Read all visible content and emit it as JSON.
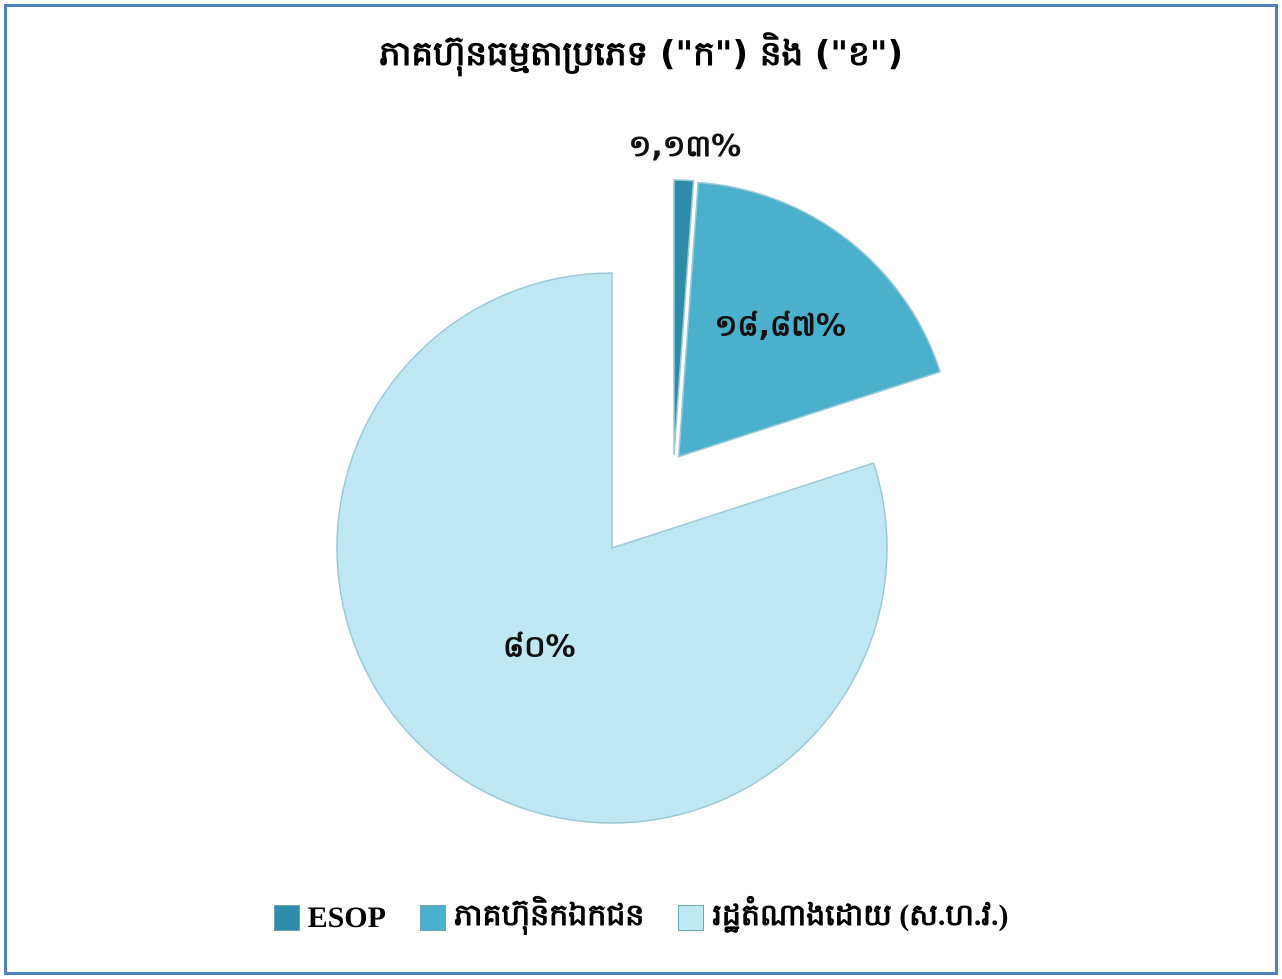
{
  "chart_data": {
    "type": "pie",
    "title": "ភាគហ៊ុនធម្មតាប្រភេទ (\"ក\") និង (\"ខ\")",
    "categories": [
      "ESOP",
      "ភាគហ៊ុនិកឯកជន",
      "រដ្ឋតំណាងដោយ (ស.ហ.វ.)"
    ],
    "values": [
      1.13,
      18.87,
      80
    ],
    "value_labels": [
      "១,១៣%",
      "១៨,៨៧%",
      "៨០%"
    ],
    "colors": [
      "#2f8ca8",
      "#4bb0cc",
      "#bfe7f4"
    ],
    "legend": "bottom"
  }
}
